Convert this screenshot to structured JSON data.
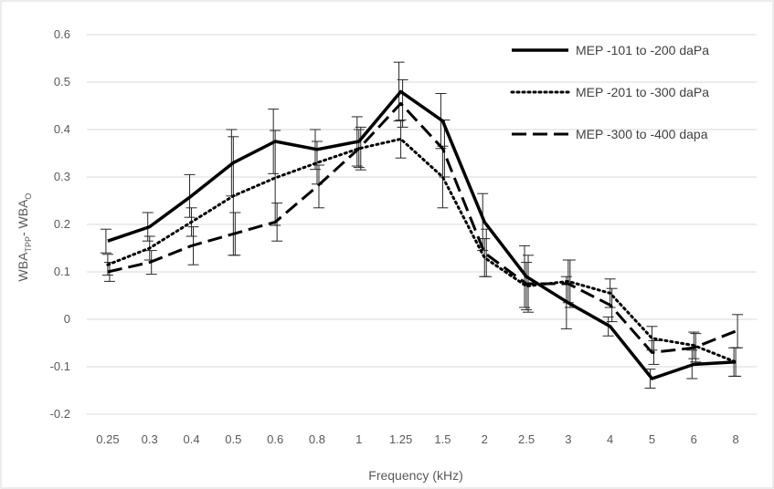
{
  "chart_data": {
    "type": "line",
    "title": "",
    "xlabel": "Frequency (kHz)",
    "ylabel": {
      "main": "WBA",
      "sub1": "TPP",
      "mid": "- WBA",
      "sub2": "O"
    },
    "ylim": [
      -0.2,
      0.6
    ],
    "yticks": [
      "-0.2",
      "-0.1",
      "0",
      "0.1",
      "0.2",
      "0.3",
      "0.4",
      "0.5",
      "0.6"
    ],
    "categories": [
      "0.25",
      "0.3",
      "0.4",
      "0.5",
      "0.6",
      "0.8",
      "1",
      "1.25",
      "1.5",
      "2",
      "2.5",
      "3",
      "4",
      "5",
      "6",
      "8"
    ],
    "grid": "horizontal",
    "legend_position": "top-right",
    "series": [
      {
        "name": "MEP -101 to -200 daPa",
        "style": "solid",
        "values": [
          0.165,
          0.195,
          0.26,
          0.33,
          0.375,
          0.358,
          0.375,
          0.48,
          0.418,
          0.205,
          0.09,
          0.035,
          -0.015,
          -0.125,
          -0.095,
          -0.09
        ],
        "err": [
          0.025,
          0.03,
          0.045,
          0.07,
          0.068,
          0.042,
          0.052,
          0.062,
          0.058,
          0.06,
          0.065,
          0.055,
          0.02,
          0.02,
          0.03,
          0.03
        ]
      },
      {
        "name": "MEP -201 to -300 daPa",
        "style": "dotted",
        "values": [
          0.115,
          0.15,
          0.205,
          0.26,
          0.298,
          0.33,
          0.36,
          0.38,
          0.3,
          0.13,
          0.07,
          0.08,
          0.055,
          -0.04,
          -0.055,
          -0.09
        ],
        "err": [
          0.022,
          0.025,
          0.03,
          0.125,
          0.1,
          0.045,
          0.04,
          0.04,
          0.065,
          0.04,
          0.05,
          0.045,
          0.03,
          0.025,
          0.028,
          0.03
        ]
      },
      {
        "name": "MEP -300 to -400 dapa",
        "style": "dashed",
        "values": [
          0.1,
          0.12,
          0.155,
          0.18,
          0.205,
          0.28,
          0.36,
          0.455,
          0.36,
          0.14,
          0.075,
          0.075,
          0.03,
          -0.07,
          -0.06,
          -0.025
        ],
        "err": [
          0.02,
          0.025,
          0.04,
          0.045,
          0.04,
          0.045,
          0.045,
          0.05,
          0.06,
          0.05,
          0.06,
          0.05,
          0.035,
          0.025,
          0.03,
          0.035
        ]
      }
    ]
  }
}
